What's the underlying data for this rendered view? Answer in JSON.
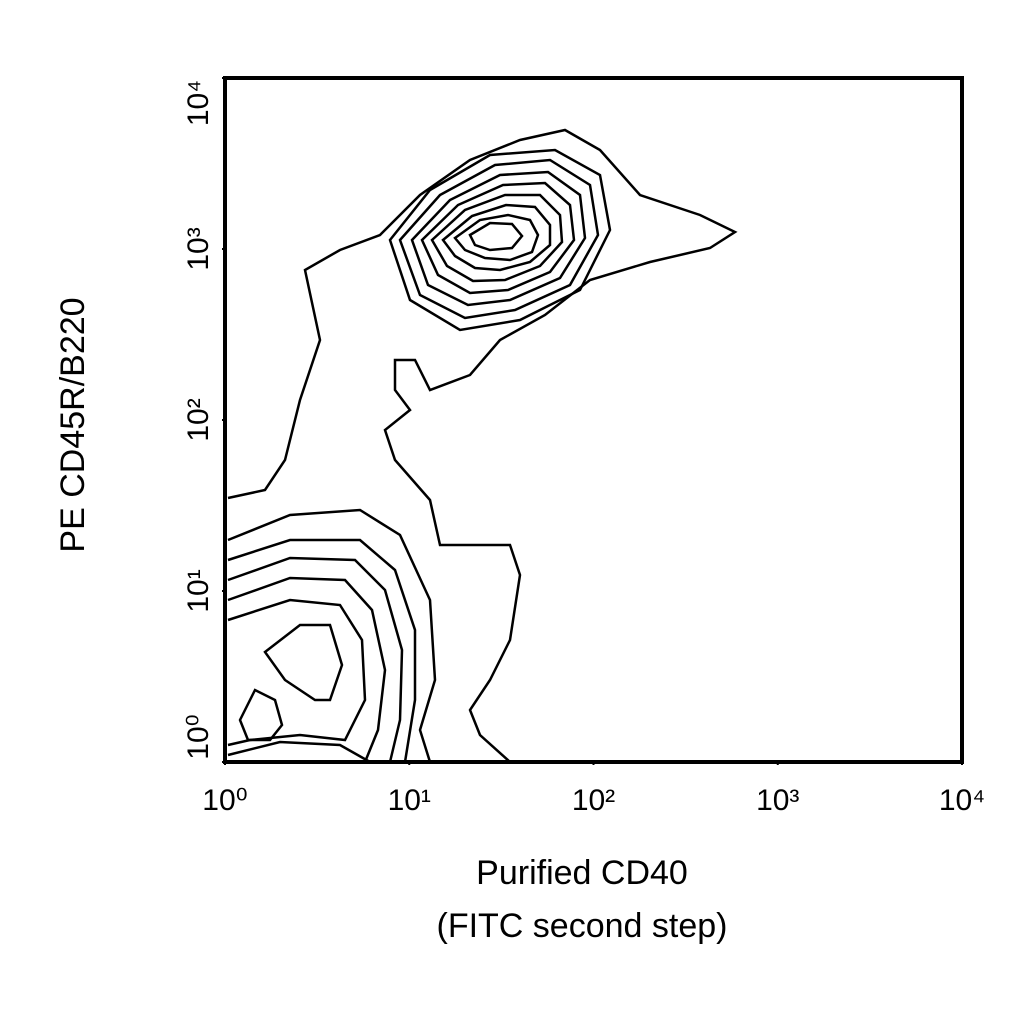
{
  "chart_data": {
    "type": "contour",
    "x_label": "Purified CD40",
    "x_label_2": "(FITC second step)",
    "y_label": "PE CD45R/B220",
    "xlim": [
      1,
      10000
    ],
    "ylim": [
      1,
      10000
    ],
    "xlog": true,
    "ylog": true,
    "xticks": [
      {
        "value": 1,
        "label": "10⁰"
      },
      {
        "value": 10,
        "label": "10¹"
      },
      {
        "value": 100,
        "label": "10²"
      },
      {
        "value": 1000,
        "label": "10³"
      },
      {
        "value": 10000,
        "label": "10⁴"
      }
    ],
    "yticks": [
      {
        "value": 1,
        "label": "10⁰"
      },
      {
        "value": 10,
        "label": "10¹"
      },
      {
        "value": 100,
        "label": "10²"
      },
      {
        "value": 1000,
        "label": "10³"
      },
      {
        "value": 10000,
        "label": "10⁴"
      }
    ],
    "color": "#000000"
  }
}
